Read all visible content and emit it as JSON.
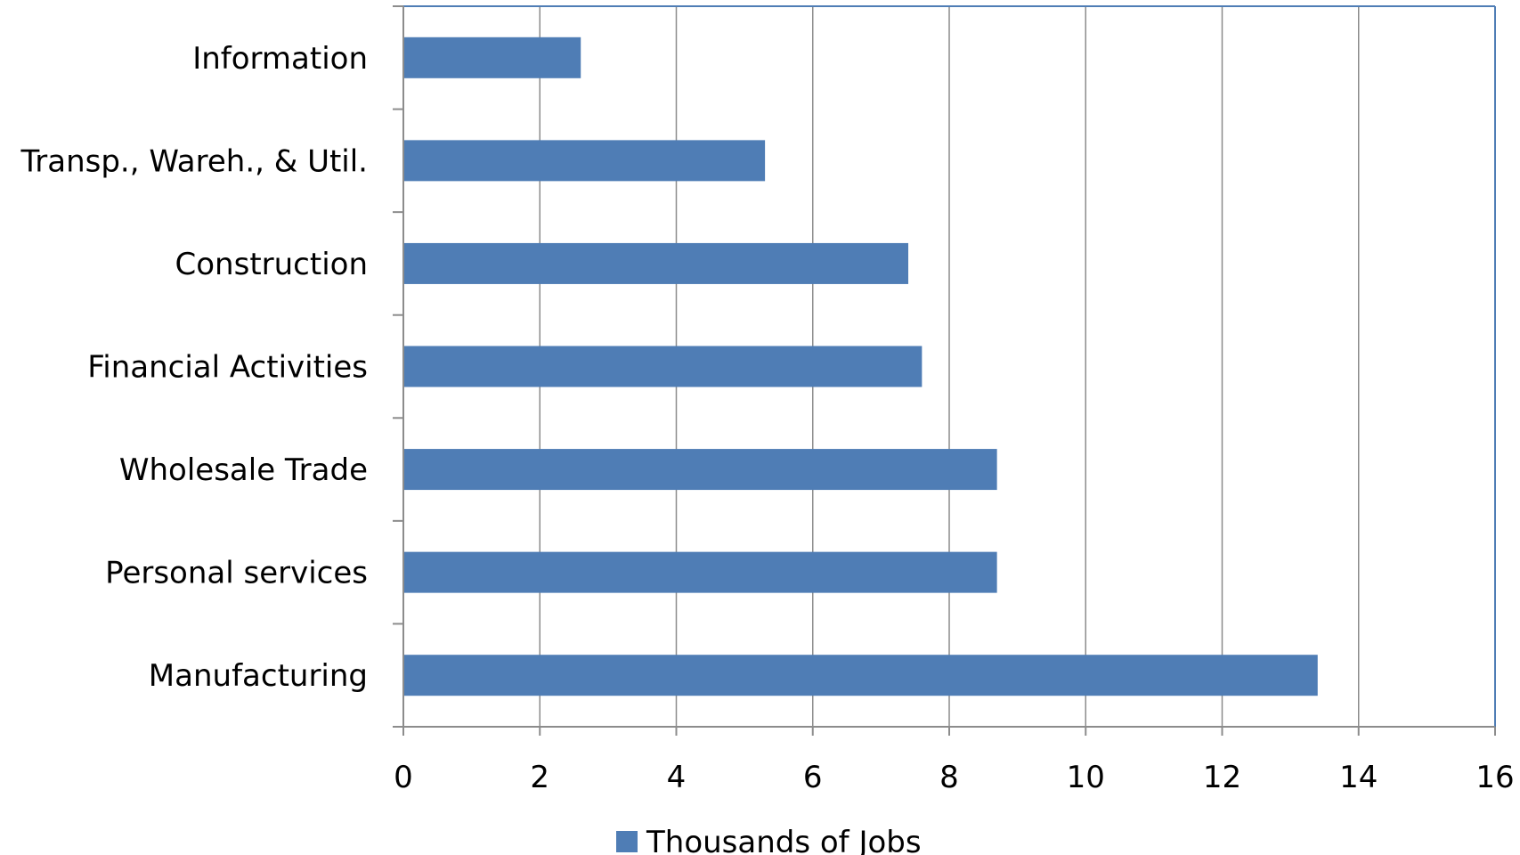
{
  "chart_data": {
    "type": "bar",
    "orientation": "horizontal",
    "categories": [
      "Information",
      "Transp., Wareh., & Util.",
      "Construction",
      "Financial Activities",
      "Wholesale Trade",
      "Personal services",
      "Manufacturing"
    ],
    "series": [
      {
        "name": "Thousands of Jobs",
        "values": [
          2.6,
          5.3,
          7.4,
          7.6,
          8.7,
          8.7,
          13.4
        ]
      }
    ],
    "xlim": [
      0,
      16
    ],
    "xticks": [
      0,
      2,
      4,
      6,
      8,
      10,
      12,
      14,
      16
    ],
    "grid": "vertical",
    "legend": "bottom",
    "bar_color": "#4F7DB5",
    "grid_color": "#8C8C8C",
    "frame_color": "#4F7DB5"
  }
}
